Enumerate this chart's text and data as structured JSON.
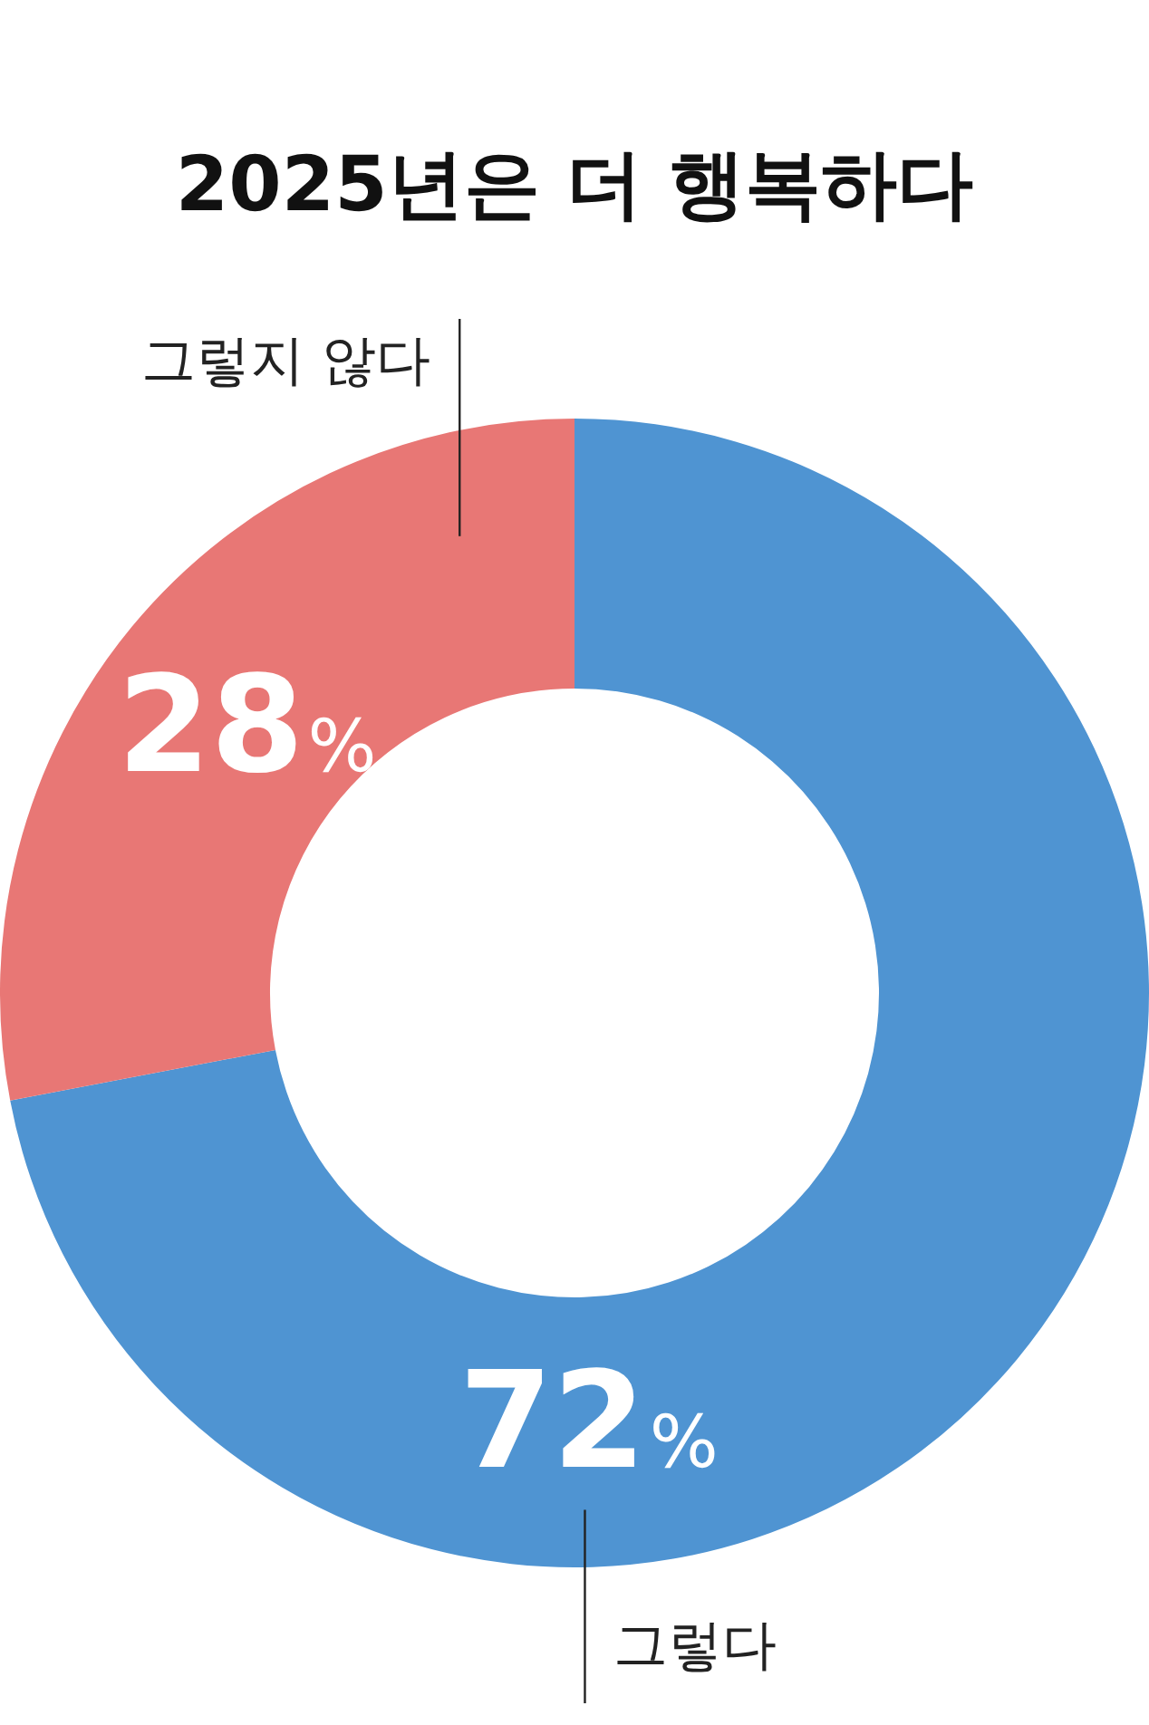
{
  "chart_data": {
    "type": "donut",
    "title": "2025년은 더 행복하다",
    "categories": [
      "그렇다",
      "그렇지 않다"
    ],
    "values": [
      72,
      28
    ],
    "colors": [
      "#4f94d2",
      "#e87775"
    ],
    "value_labels": [
      "72%",
      "28%"
    ],
    "legend": false
  }
}
